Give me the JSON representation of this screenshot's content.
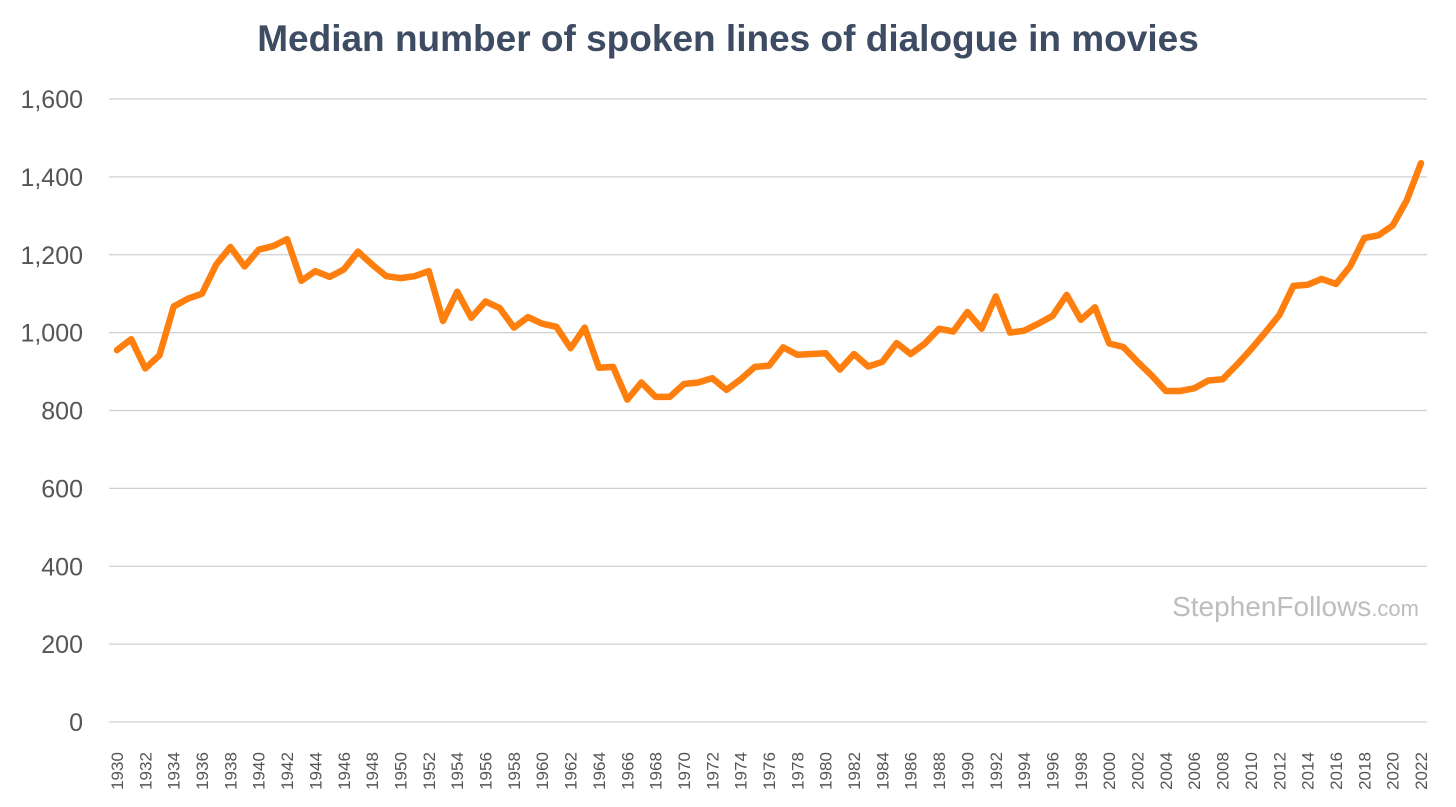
{
  "chart_data": {
    "type": "line",
    "title": "Median number of spoken lines of dialogue in movies",
    "xlabel": "",
    "ylabel": "",
    "ylim": [
      0,
      1600
    ],
    "yticks": [
      "0",
      "200",
      "400",
      "600",
      "800",
      "1,000",
      "1,200",
      "1,400",
      "1,600"
    ],
    "grid": true,
    "x": [
      1930,
      1931,
      1932,
      1933,
      1934,
      1935,
      1936,
      1937,
      1938,
      1939,
      1940,
      1941,
      1942,
      1943,
      1944,
      1945,
      1946,
      1947,
      1948,
      1949,
      1950,
      1951,
      1952,
      1953,
      1954,
      1955,
      1956,
      1957,
      1958,
      1959,
      1960,
      1961,
      1962,
      1963,
      1964,
      1965,
      1966,
      1967,
      1968,
      1969,
      1970,
      1971,
      1972,
      1973,
      1974,
      1975,
      1976,
      1977,
      1978,
      1979,
      1980,
      1981,
      1982,
      1983,
      1984,
      1985,
      1986,
      1987,
      1988,
      1989,
      1990,
      1991,
      1992,
      1993,
      1994,
      1995,
      1996,
      1997,
      1998,
      1999,
      2000,
      2001,
      2002,
      2003,
      2004,
      2005,
      2006,
      2007,
      2008,
      2009,
      2010,
      2011,
      2012,
      2013,
      2014,
      2015,
      2016,
      2017,
      2018,
      2019,
      2020,
      2021,
      2022
    ],
    "xtick_labels": [
      "1930",
      "1932",
      "1934",
      "1936",
      "1938",
      "1940",
      "1942",
      "1944",
      "1946",
      "1948",
      "1950",
      "1952",
      "1954",
      "1956",
      "1958",
      "1960",
      "1962",
      "1964",
      "1966",
      "1968",
      "1970",
      "1972",
      "1974",
      "1976",
      "1978",
      "1980",
      "1982",
      "1984",
      "1986",
      "1988",
      "1990",
      "1992",
      "1994",
      "1996",
      "1998",
      "2000",
      "2002",
      "2004",
      "2006",
      "2008",
      "2010",
      "2012",
      "2014",
      "2016",
      "2018",
      "2020",
      "2022"
    ],
    "series": [
      {
        "values": [
          955,
          983,
          908,
          942,
          1067,
          1087,
          1100,
          1175,
          1220,
          1170,
          1213,
          1222,
          1240,
          1133,
          1158,
          1143,
          1162,
          1208,
          1175,
          1145,
          1140,
          1145,
          1158,
          1030,
          1105,
          1038,
          1080,
          1063,
          1013,
          1040,
          1023,
          1015,
          960,
          1013,
          910,
          912,
          828,
          872,
          835,
          835,
          868,
          872,
          883,
          853,
          880,
          912,
          915,
          962,
          943,
          945,
          947,
          905,
          945,
          913,
          925,
          973,
          945,
          972,
          1010,
          1003,
          1053,
          1010,
          1093,
          1000,
          1005,
          1023,
          1043,
          1097,
          1033,
          1065,
          972,
          963,
          925,
          890,
          850,
          850,
          857,
          877,
          880,
          917,
          957,
          1000,
          1045,
          1120,
          1123,
          1138,
          1125,
          1170,
          1243,
          1250,
          1275,
          1340,
          1435
        ],
        "color": "#ff7f0e"
      }
    ],
    "legend": "none"
  },
  "watermark": {
    "main": "StephenFollows",
    "suffix": ".com"
  }
}
